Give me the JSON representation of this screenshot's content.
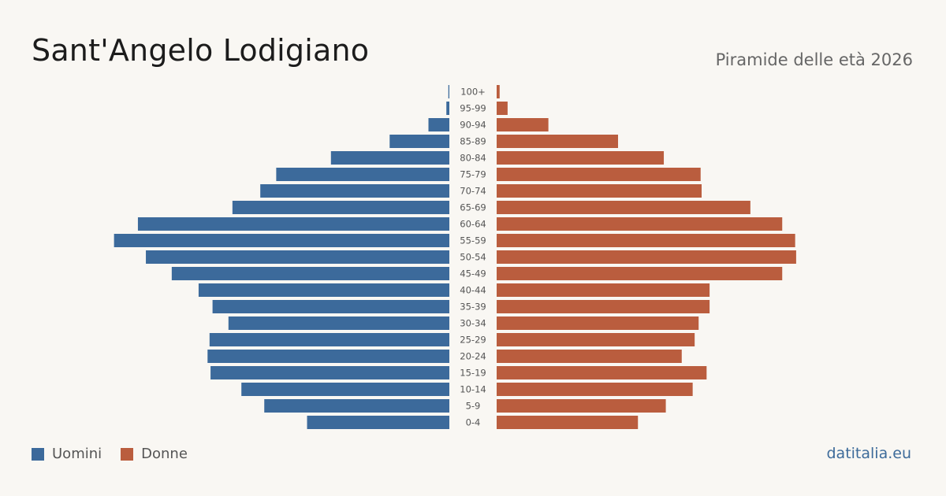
{
  "header": {
    "title": "Sant'Angelo Lodigiano",
    "subtitle": "Piramide delle età 2026"
  },
  "legend": {
    "men_label": "Uomini",
    "women_label": "Donne"
  },
  "footer": {
    "brand": "datitalia.eu"
  },
  "colors": {
    "men": "#3c6a9b",
    "women": "#ba5d3e",
    "background": "#f9f7f3",
    "label": "#555555"
  },
  "chart_data": {
    "type": "bar",
    "orientation": "horizontal-pyramid",
    "categories": [
      "100+",
      "95-99",
      "90-94",
      "85-89",
      "80-84",
      "75-79",
      "70-74",
      "65-69",
      "60-64",
      "55-59",
      "50-54",
      "45-49",
      "40-44",
      "35-39",
      "30-34",
      "25-29",
      "20-24",
      "15-19",
      "10-14",
      "5-9",
      "0-4"
    ],
    "series": [
      {
        "name": "Uomini",
        "values": [
          1,
          3,
          21,
          60,
          119,
          174,
          190,
          218,
          313,
          337,
          305,
          279,
          252,
          238,
          222,
          241,
          243,
          240,
          209,
          186,
          143
        ]
      },
      {
        "name": "Donne",
        "values": [
          3,
          11,
          52,
          122,
          168,
          205,
          206,
          255,
          287,
          300,
          301,
          287,
          214,
          214,
          203,
          199,
          186,
          211,
          197,
          170,
          142
        ]
      }
    ],
    "xlim": [
      0,
      340
    ],
    "grid": false,
    "legend_position": "bottom-left"
  }
}
